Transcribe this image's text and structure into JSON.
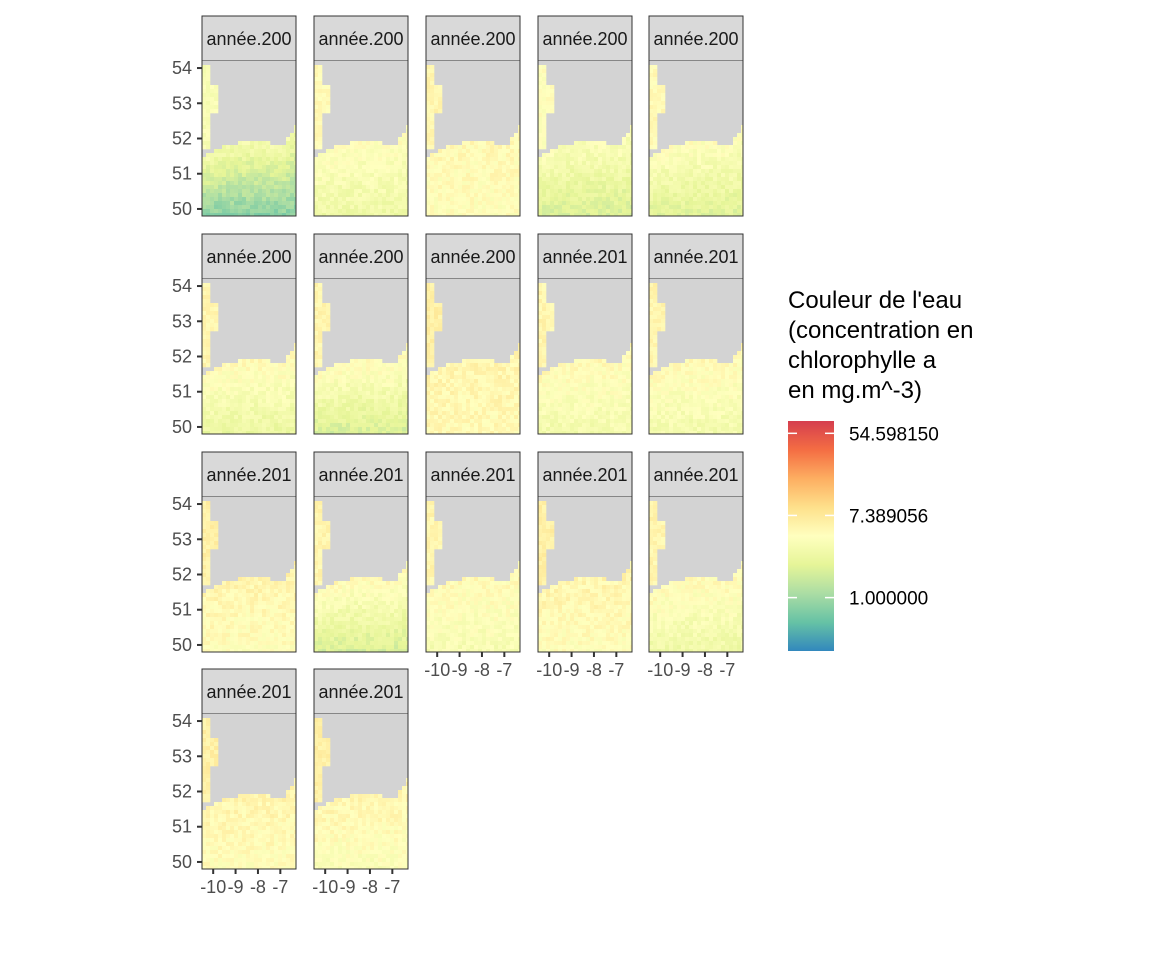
{
  "chart_data": {
    "type": "heatmap",
    "description_note": "",
    "layout": {
      "columns": 5,
      "panel_count": 17
    },
    "panels": [
      {
        "strip_label": "année.200",
        "mean_tone": 0.18,
        "north_tone": 0.45
      },
      {
        "strip_label": "année.200",
        "mean_tone": 0.42,
        "north_tone": 0.5
      },
      {
        "strip_label": "année.200",
        "mean_tone": 0.5,
        "north_tone": 0.52
      },
      {
        "strip_label": "année.200",
        "mean_tone": 0.34,
        "north_tone": 0.48
      },
      {
        "strip_label": "année.200",
        "mean_tone": 0.36,
        "north_tone": 0.5
      },
      {
        "strip_label": "année.200",
        "mean_tone": 0.4,
        "north_tone": 0.52
      },
      {
        "strip_label": "année.200",
        "mean_tone": 0.34,
        "north_tone": 0.52
      },
      {
        "strip_label": "année.200",
        "mean_tone": 0.52,
        "north_tone": 0.54
      },
      {
        "strip_label": "année.201",
        "mean_tone": 0.44,
        "north_tone": 0.52
      },
      {
        "strip_label": "année.201",
        "mean_tone": 0.44,
        "north_tone": 0.52
      },
      {
        "strip_label": "année.201",
        "mean_tone": 0.5,
        "north_tone": 0.54
      },
      {
        "strip_label": "année.201",
        "mean_tone": 0.34,
        "north_tone": 0.52
      },
      {
        "strip_label": "année.201",
        "mean_tone": 0.46,
        "north_tone": 0.52
      },
      {
        "strip_label": "année.201",
        "mean_tone": 0.5,
        "north_tone": 0.54
      },
      {
        "strip_label": "année.201",
        "mean_tone": 0.42,
        "north_tone": 0.52
      },
      {
        "strip_label": "année.201",
        "mean_tone": 0.5,
        "north_tone": 0.54
      },
      {
        "strip_label": "année.201",
        "mean_tone": 0.48,
        "north_tone": 0.54
      }
    ],
    "x_ticks": [
      -10,
      -9,
      -8,
      -7
    ],
    "x_tick_labels": [
      "-10",
      "-9",
      "-8",
      "-7"
    ],
    "y_ticks": [
      54,
      53,
      52,
      51,
      50
    ],
    "y_tick_labels": [
      "54",
      "53",
      "52",
      "51",
      "50"
    ],
    "xlim": [
      -10.5,
      -6.3
    ],
    "ylim": [
      49.8,
      54.2
    ],
    "legend": {
      "title_lines": [
        "Couleur de l'eau",
        "(concentration en",
        "chlorophylle a",
        "en mg.m^-3)"
      ],
      "breaks": [
        "54.598150",
        "7.389056",
        "1.000000"
      ],
      "break_values": [
        4,
        2,
        0
      ],
      "log_range": [
        -1.3,
        4.3
      ],
      "palette": [
        "#3288bd",
        "#66c2a5",
        "#abdda4",
        "#e6f598",
        "#ffffbf",
        "#fee08b",
        "#fdae61",
        "#f46d43",
        "#d53e4f"
      ]
    },
    "colors": {
      "land": "#d3d3d3",
      "strip_bg": "#d9d9d9",
      "panel_border": "#333333",
      "axis_text": "#4d4d4d"
    }
  }
}
